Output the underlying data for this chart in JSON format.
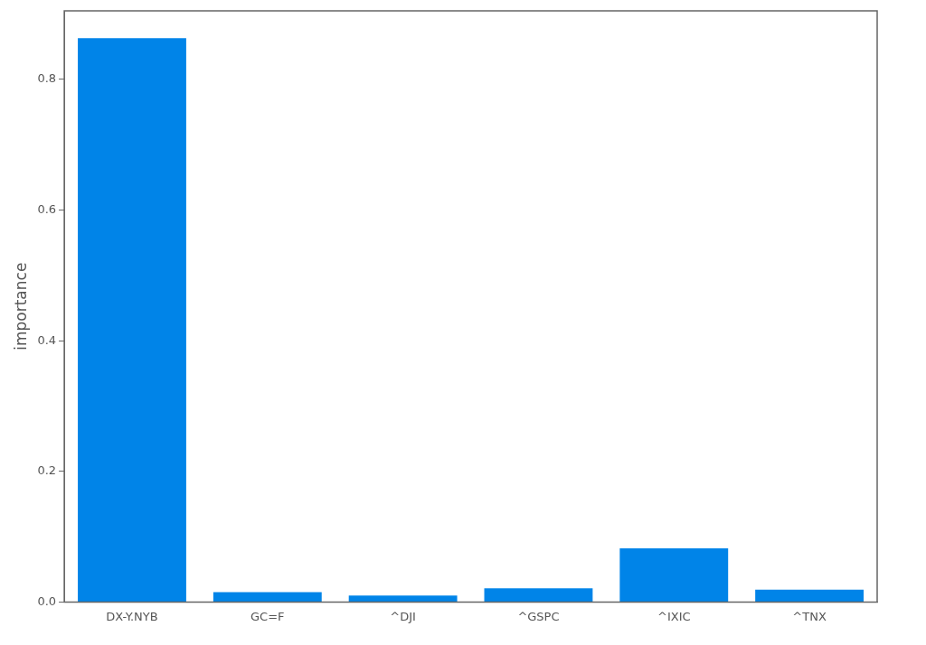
{
  "chart_data": {
    "type": "bar",
    "ylabel": "importance",
    "categories": [
      "DX-Y.NYB",
      "GC=F",
      "^DJI",
      "^GSPC",
      "^IXIC",
      "^TNX"
    ],
    "values": [
      0.863,
      0.015,
      0.01,
      0.021,
      0.082,
      0.019
    ],
    "color": "#0084e8",
    "ylim": [
      0,
      0.905
    ],
    "yticks": [
      {
        "value": 0,
        "label": "0.0"
      },
      {
        "value": 0.2,
        "label": "0.2"
      },
      {
        "value": 0.4,
        "label": "0.4"
      },
      {
        "value": 0.6,
        "label": "0.6"
      },
      {
        "value": 0.8,
        "label": "0.8"
      }
    ],
    "grid": false,
    "legend": false
  }
}
